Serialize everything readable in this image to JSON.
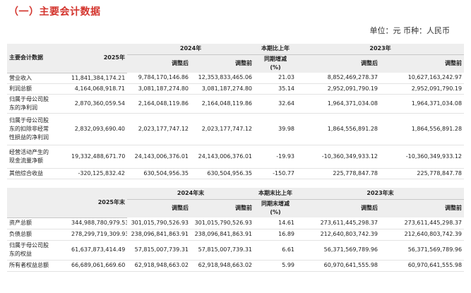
{
  "title": "（一）主要会计数据",
  "unit_note": "单位：元  币种：人民币",
  "table1": {
    "header": {
      "item": "主要会计数据",
      "current_year": "2025年",
      "prior_year": "2024年",
      "change_line1": "本期比上年",
      "change_line2": "同期增减",
      "change_unit": "(%)",
      "two_years_prior": "2023年",
      "adjusted": "调整后",
      "before_adjust": "调整前"
    },
    "rows": [
      {
        "label": [
          "营业收入"
        ],
        "values": [
          "11,841,384,174.21",
          "9,784,170,146.86",
          "12,353,833,465.06",
          "21.03",
          "8,852,469,278.37",
          "10,627,163,242.97"
        ]
      },
      {
        "label": [
          "利润总额"
        ],
        "values": [
          "4,164,068,918.71",
          "3,081,187,274.80",
          "3,081,187,274.80",
          "35.14",
          "2,952,091,790.19",
          "2,952,091,790.19"
        ]
      },
      {
        "label": [
          "归属于母公司股",
          "东的净利润"
        ],
        "values": [
          "2,870,360,059.54",
          "2,164,048,119.86",
          "2,164,048,119.86",
          "32.64",
          "1,964,371,034.08",
          "1,964,371,034.08"
        ]
      },
      {
        "label": [
          "归属于母公司股",
          "东的扣除非经常",
          "性损益的净利润"
        ],
        "values": [
          "2,832,093,690.40",
          "2,023,177,747.12",
          "2,023,177,747.12",
          "39.98",
          "1,864,556,891.28",
          "1,864,556,891.28"
        ]
      },
      {
        "label": [
          "经营活动产生的",
          "现金流量净额"
        ],
        "values": [
          "19,332,488,671.70",
          "24,143,006,376.01",
          "24,143,006,376.01",
          "-19.93",
          "-10,360,349,933.12",
          "-10,360,349,933.12"
        ]
      },
      {
        "label": [
          "其他综合收益"
        ],
        "values": [
          "-320,125,832.42",
          "630,504,956.35",
          "630,504,956.35",
          "-150.77",
          "225,778,847.78",
          "225,778,847.78"
        ]
      }
    ]
  },
  "table2": {
    "header": {
      "current_year": "2025年末",
      "prior_year": "2024年末",
      "change_line1": "本期末比上年",
      "change_line2": "同期末增减",
      "change_unit": "(%)",
      "two_years_prior": "2023年末",
      "adjusted": "调整后",
      "before_adjust": "调整前"
    },
    "rows": [
      {
        "label": [
          "资产总额"
        ],
        "values": [
          "344,988,780,979.53",
          "301,015,790,526.93",
          "301,015,790,526.93",
          "14.61",
          "273,611,445,298.37",
          "273,611,445,298.37"
        ]
      },
      {
        "label": [
          "负债总额"
        ],
        "values": [
          "278,299,719,309.93",
          "238,096,841,863.91",
          "238,096,841,863.91",
          "16.89",
          "212,640,803,742.39",
          "212,640,803,742.39"
        ]
      },
      {
        "label": [
          "归属于母公司股",
          "东的权益"
        ],
        "values": [
          "61,637,873,414.49",
          "57,815,007,739.31",
          "57,815,007,739.31",
          "6.61",
          "56,371,569,789.96",
          "56,371,569,789.96"
        ]
      },
      {
        "label": [
          "所有者权益总额"
        ],
        "values": [
          "66,689,061,669.60",
          "62,918,948,663.02",
          "62,918,948,663.02",
          "5.99",
          "60,970,641,555.98",
          "60,970,641,555.98"
        ]
      }
    ]
  }
}
